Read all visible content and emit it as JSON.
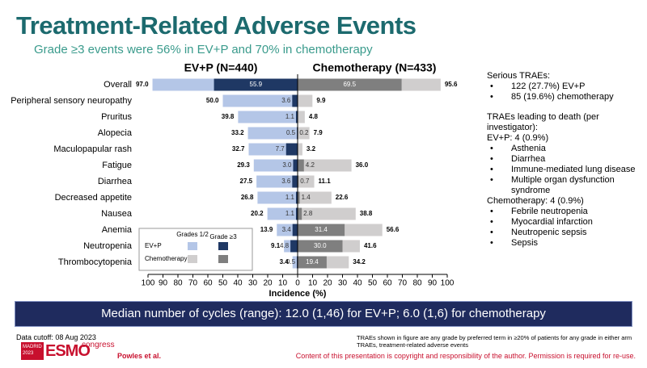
{
  "title": "Treatment-Related Adverse Events",
  "subtitle": "Grade ≥3 events were 56% in EV+P and 70% in chemotherapy",
  "chart_data": {
    "type": "butterfly",
    "xlabel": "Incidence (%)",
    "categories": [
      "Overall",
      "Peripheral sensory neuropathy",
      "Pruritus",
      "Alopecia",
      "Maculopapular rash",
      "Fatigue",
      "Diarrhea",
      "Decreased appetite",
      "Nausea",
      "Anemia",
      "Neutropenia",
      "Thrombocytopenia"
    ],
    "xlim": [
      -100,
      100
    ],
    "xticks": [
      {
        "value": -100,
        "label": "100"
      },
      {
        "value": -90,
        "label": "90"
      },
      {
        "value": -80,
        "label": "80"
      },
      {
        "value": -70,
        "label": "70"
      },
      {
        "value": -60,
        "label": "60"
      },
      {
        "value": -50,
        "label": "50"
      },
      {
        "value": -40,
        "label": "40"
      },
      {
        "value": -30,
        "label": "30"
      },
      {
        "value": -20,
        "label": "20"
      },
      {
        "value": -10,
        "label": "10"
      },
      0,
      10,
      20,
      30,
      40,
      50,
      60,
      70,
      80,
      90,
      100
    ],
    "legend_columns": [
      "Grades 1/2",
      "Grade ≥3"
    ],
    "arms": [
      {
        "name": "EV+P",
        "title": "EV+P (N=440)",
        "side": "left",
        "colors": [
          "#b4c6e7",
          "#1f3864"
        ],
        "all_grades": {
          "values": [
            97.0,
            50.0,
            39.8,
            33.2,
            32.7,
            29.3,
            27.5,
            26.8,
            20.2,
            13.9,
            9.1,
            3.4
          ],
          "value_labels": [
            "97.0",
            "50.0",
            "39.8",
            "33.2",
            "32.7",
            "29.3",
            "27.5",
            "26.8",
            "20.2",
            "13.9",
            "9.1",
            "3.4"
          ]
        },
        "grade3": {
          "values": [
            55.9,
            3.6,
            1.1,
            0.5,
            7.7,
            3.0,
            3.6,
            1.1,
            1.1,
            3.4,
            4.8,
            0.5
          ],
          "value_labels": [
            "55.9",
            "3.6",
            "1.1",
            "0.5",
            "7.7",
            "3.0",
            "3.6",
            "1.1",
            "1.1",
            "3.4",
            "4.8",
            "0.5"
          ]
        }
      },
      {
        "name": "Chemotherapy",
        "title": "Chemotherapy (N=433)",
        "side": "right",
        "colors": [
          "#d0cece",
          "#7f7f7f"
        ],
        "all_grades": {
          "values": [
            95.6,
            9.9,
            4.8,
            7.9,
            3.2,
            36.0,
            11.1,
            22.6,
            38.8,
            56.6,
            41.6,
            34.2
          ],
          "value_labels": [
            "95.6",
            "9.9",
            "4.8",
            "7.9",
            "3.2",
            "36.0",
            "11.1",
            "22.6",
            "38.8",
            "56.6",
            "41.6",
            "34.2"
          ]
        },
        "grade3": {
          "values": [
            69.5,
            0,
            0,
            0.2,
            0,
            4.2,
            0.7,
            1.4,
            2.8,
            31.4,
            30.0,
            19.4
          ],
          "value_labels": [
            "69.5",
            null,
            null,
            "0.2",
            null,
            "4.2",
            "0.7",
            "1.4",
            "2.8",
            "31.4",
            "30.0",
            "19.4"
          ]
        }
      }
    ]
  },
  "sidebar": {
    "serious_title": "Serious TRAEs:",
    "serious_items": [
      "122 (27.7%) EV+P",
      "85 (19.6%) chemotherapy"
    ],
    "death_title": "TRAEs leading to death (per investigator):",
    "evp_deaths": "EV+P: 4 (0.9%)",
    "evp_items": [
      "Asthenia",
      "Diarrhea",
      "Immune-mediated lung disease",
      "Multiple organ dysfunction syndrome"
    ],
    "chemo_deaths": "Chemotherapy: 4 (0.9%)",
    "chemo_items": [
      "Febrile neutropenia",
      "Myocardial infarction",
      "Neutropenic sepsis",
      "Sepsis"
    ]
  },
  "banner": "Median number of cycles (range): 12.0 (1,46) for EV+P; 6.0 (1,6) for chemotherapy",
  "footer": {
    "cutoff": "Data cutoff: 08 Aug 2023",
    "logo_city": "MADRID",
    "logo_year": "2023",
    "logo_name": "ESMO",
    "logo_congress": "congress",
    "author": "Powles et al.",
    "notes": [
      "TRAEs shown in figure are any grade by preferred term in ≥20% of patients for any grade in either arm",
      "TRAEs, treatment-related adverse events"
    ],
    "copyright": "Content of this presentation is copyright and responsibility of the author. Permission is required for re-use."
  }
}
